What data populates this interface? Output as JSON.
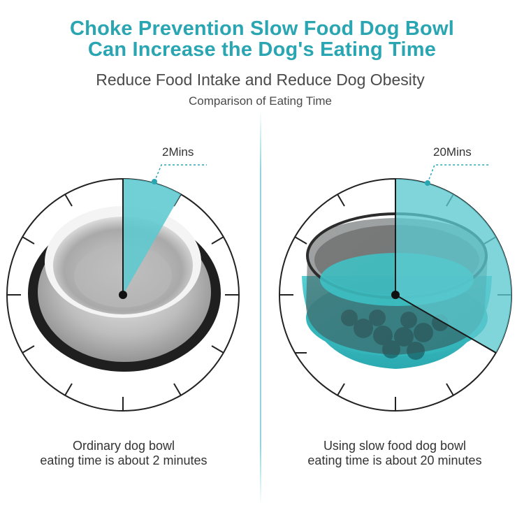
{
  "title": {
    "line1": "Choke Prevention Slow Food Dog Bowl",
    "line2": "Can Increase the Dog's Eating Time"
  },
  "subtitle": "Reduce Food Intake and Reduce Dog Obesity",
  "comparison_label": "Comparison of Eating Time",
  "left": {
    "time_label": "2Mins",
    "caption_line1": "Ordinary dog bowl",
    "caption_line2": "eating time is about 2 minutes"
  },
  "right": {
    "time_label": "20Mins",
    "caption_line1": "Using slow food dog bowl",
    "caption_line2": "eating time is about 20 minutes"
  },
  "colors": {
    "accent": "#2aa6b3",
    "clock_wedge": "#5cc9cf",
    "slow_bowl": "#3bbfc4"
  },
  "icons": [
    "stainless-steel-bowl",
    "slow-feeder-bowl",
    "clock-face"
  ]
}
